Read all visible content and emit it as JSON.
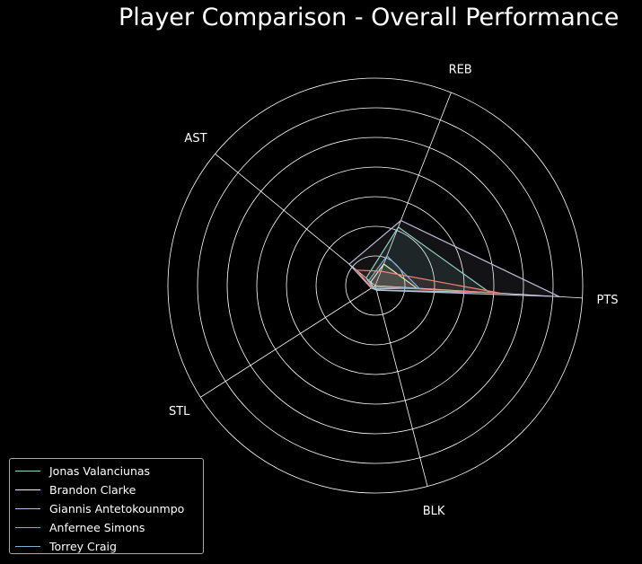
{
  "chart_data": {
    "type": "radar",
    "title": "Player Comparison - Overall Performance",
    "axes": [
      "PTS",
      "REB",
      "AST",
      "STL",
      "BLK"
    ],
    "rlim": [
      0,
      35
    ],
    "rings": 7,
    "grid": true,
    "legend_position": "lower-left",
    "series": [
      {
        "name": "Jonas Valanciunas",
        "color": "#8dd3c7",
        "values": [
          19.3,
          10.6,
          2.0,
          0.6,
          0.8
        ]
      },
      {
        "name": "Brandon Clarke",
        "color": "#feffb3",
        "values": [
          7.0,
          3.9,
          1.0,
          0.5,
          0.6
        ]
      },
      {
        "name": "Giannis Antetokounmpo",
        "color": "#bfbbd9",
        "values": [
          31.1,
          11.8,
          5.7,
          0.8,
          0.8
        ]
      },
      {
        "name": "Anfernee Simons",
        "color": "#fa8174",
        "values": [
          21.1,
          2.6,
          4.1,
          0.7,
          0.2
        ]
      },
      {
        "name": "Torrey Craig",
        "color": "#81b1d2",
        "values": [
          7.4,
          5.4,
          1.4,
          0.6,
          0.5
        ]
      }
    ]
  }
}
